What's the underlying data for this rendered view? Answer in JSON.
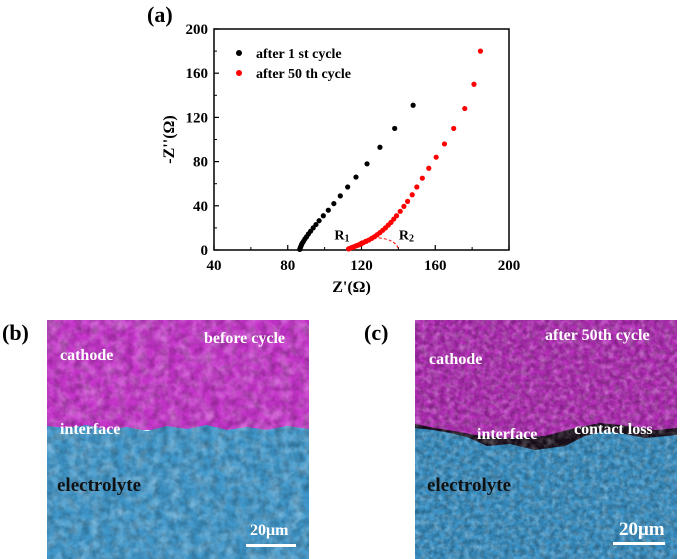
{
  "panels": {
    "a": {
      "letter": "(a)"
    },
    "b": {
      "letter": "(b)",
      "labels": {
        "cathode": "cathode",
        "state": "before cycle",
        "interface": "interface",
        "electrolyte": "electrolyte",
        "scale": "20μm"
      }
    },
    "c": {
      "letter": "(c)",
      "labels": {
        "cathode": "cathode",
        "state": "after 50th cycle",
        "interface": "interface",
        "loss": "contact  loss",
        "electrolyte": "electrolyte",
        "scale": "20μm"
      }
    }
  },
  "colors": {
    "cathode": "#c22fc9",
    "electrolyte": "#3f94c9",
    "series1": "#000000",
    "series2": "#ff0000"
  },
  "chart_data": {
    "type": "scatter",
    "xlabel": "Z'(Ω)",
    "ylabel": "-Z''(Ω)",
    "xlim": [
      40,
      200
    ],
    "ylim": [
      0,
      200
    ],
    "xticks": [
      40,
      80,
      120,
      160,
      200
    ],
    "yticks": [
      0,
      40,
      80,
      120,
      160,
      200
    ],
    "legend_position": "top-left",
    "annotations": [
      {
        "text": "R",
        "sub": "1",
        "x": 108,
        "y": 7
      },
      {
        "text": "R",
        "sub": "2",
        "x": 143,
        "y": 7
      }
    ],
    "series": [
      {
        "name": "after 1 st cycle",
        "color": "#000000",
        "x": [
          86.5,
          86.7,
          86.9,
          87.2,
          87.5,
          88.0,
          88.6,
          89.3,
          90.2,
          91.2,
          92.4,
          93.8,
          95.3,
          97.0,
          99.3,
          102.0,
          105.0,
          108.5,
          112.5,
          117.0,
          123.0,
          130.0,
          138.0,
          148.0
        ],
        "y": [
          0.5,
          1.5,
          2.5,
          3.6,
          5.0,
          6.5,
          8.0,
          10.0,
          12.0,
          14.5,
          17.0,
          20.0,
          23.0,
          26.5,
          31.0,
          36.0,
          42.0,
          49.0,
          57.0,
          66.0,
          78.0,
          93.0,
          110.0,
          131.0
        ]
      },
      {
        "name": "after 50 th cycle",
        "color": "#ff0000",
        "x": [
          113.0,
          114.0,
          115.0,
          116.0,
          117.0,
          118.0,
          119.0,
          120.0,
          121.0,
          122.5,
          124.0,
          125.5,
          127.0,
          128.5,
          130.0,
          131.5,
          133.0,
          134.5,
          136.0,
          137.5,
          139.0,
          141.0,
          143.0,
          145.0,
          147.5,
          150.0,
          153.0,
          156.5,
          160.5,
          165.0,
          170.0,
          176.0,
          181.0,
          184.5
        ],
        "y": [
          1.0,
          1.7,
          2.4,
          3.0,
          3.7,
          4.3,
          5.0,
          5.8,
          6.6,
          7.8,
          9.0,
          10.5,
          12.0,
          13.8,
          15.7,
          17.8,
          20.0,
          22.5,
          25.0,
          28.0,
          31.0,
          35.0,
          39.5,
          44.0,
          50.0,
          57.0,
          65.0,
          74.0,
          84.0,
          96.0,
          110.0,
          128.0,
          150.0,
          180.0
        ]
      }
    ]
  }
}
